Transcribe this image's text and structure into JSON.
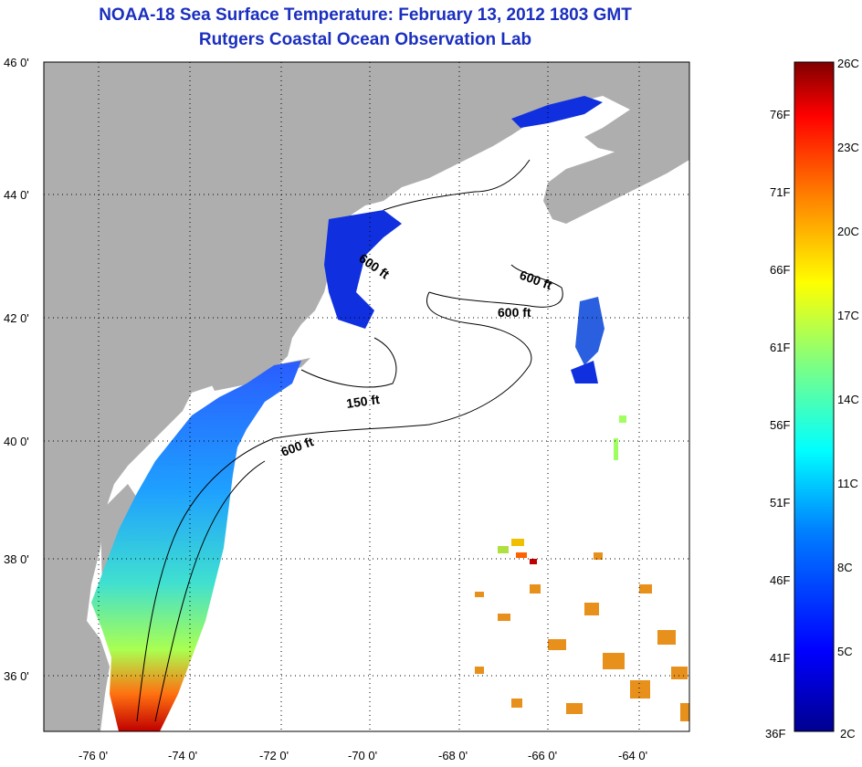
{
  "title": "NOAA-18 Sea Surface Temperature:  February 13, 2012 1803 GMT",
  "subtitle": "Rutgers Coastal Ocean Observation Lab",
  "lat_labels": [
    "46 0'",
    "44 0'",
    "42 0'",
    "40 0'",
    "38 0'",
    "36 0'"
  ],
  "lon_labels": [
    "-76 0'",
    "-74 0'",
    "-72 0'",
    "-70 0'",
    "-68 0'",
    "-66 0'",
    "-64 0'"
  ],
  "contour_labels": [
    "600 ft",
    "600 ft",
    "600 ft",
    "150 ft",
    "600 ft"
  ],
  "colorbar": {
    "f_labels": [
      "76F",
      "71F",
      "66F",
      "61F",
      "56F",
      "51F",
      "46F",
      "41F",
      "36F"
    ],
    "c_labels": [
      "26C",
      "23C",
      "20C",
      "17C",
      "14C",
      "11C",
      "8C",
      "5C",
      "2C"
    ],
    "colors": [
      "#00008f",
      "#0000ff",
      "#0080ff",
      "#00ffff",
      "#80ff80",
      "#ffff00",
      "#ff8000",
      "#ff0000",
      "#800000"
    ]
  },
  "colors": {
    "land": "#aeaeae",
    "water": "#ffffff",
    "title": "#1b2fbf"
  }
}
